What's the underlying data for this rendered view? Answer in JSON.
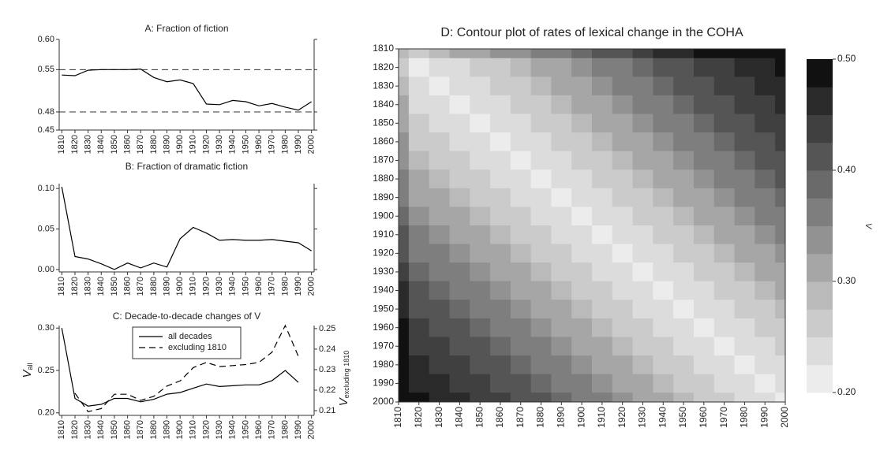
{
  "chart_data": [
    {
      "type": "line",
      "title": "A: Fraction of fiction",
      "x": [
        1810,
        1820,
        1830,
        1840,
        1850,
        1860,
        1870,
        1880,
        1890,
        1900,
        1910,
        1920,
        1930,
        1940,
        1950,
        1960,
        1970,
        1980,
        1990,
        2000
      ],
      "xticks": [
        1810,
        1820,
        1830,
        1840,
        1850,
        1860,
        1870,
        1880,
        1890,
        1900,
        1910,
        1920,
        1930,
        1940,
        1950,
        1960,
        1970,
        1980,
        1990,
        2000
      ],
      "xlim": [
        1808,
        2002
      ],
      "ylim": [
        0.45,
        0.6
      ],
      "yticks": [
        0.45,
        0.48,
        0.55,
        {
          "value": 0.6,
          "label": "0.60"
        }
      ],
      "hlines": [
        0.55,
        0.48
      ],
      "series": [
        {
          "color": "#000000",
          "linestyle": "solid",
          "values": [
            0.541,
            0.54,
            0.549,
            0.55,
            0.55,
            0.55,
            0.551,
            0.537,
            0.53,
            0.533,
            0.527,
            0.493,
            0.492,
            0.499,
            0.497,
            0.49,
            0.494,
            0.488,
            0.483,
            0.497
          ]
        }
      ]
    },
    {
      "type": "line",
      "title": "B: Fraction of dramatic fiction",
      "x": [
        1810,
        1820,
        1830,
        1840,
        1850,
        1860,
        1870,
        1880,
        1890,
        1900,
        1910,
        1920,
        1930,
        1940,
        1950,
        1960,
        1970,
        1980,
        1990,
        2000
      ],
      "xticks": [
        1810,
        1820,
        1830,
        1840,
        1850,
        1860,
        1870,
        1880,
        1890,
        1900,
        1910,
        1920,
        1930,
        1940,
        1950,
        1960,
        1970,
        1980,
        1990,
        2000
      ],
      "xlim": [
        1808,
        2002
      ],
      "ylim": [
        -0.003,
        0.106
      ],
      "yticks": [
        {
          "value": 0,
          "label": "0.00"
        },
        0.05,
        {
          "value": 0.1,
          "label": "0.10"
        }
      ],
      "series": [
        {
          "color": "#000000",
          "linestyle": "solid",
          "values": [
            0.102,
            0.016,
            0.013,
            0.007,
            0.0,
            0.008,
            0.002,
            0.008,
            0.003,
            0.038,
            0.052,
            0.045,
            0.036,
            0.037,
            0.036,
            0.036,
            0.037,
            0.035,
            0.033,
            0.023
          ]
        }
      ]
    },
    {
      "type": "line",
      "title": "C: Decade-to-decade changes of V",
      "x": [
        1810,
        1820,
        1830,
        1840,
        1850,
        1860,
        1870,
        1880,
        1890,
        1900,
        1910,
        1920,
        1930,
        1940,
        1950,
        1960,
        1970,
        1980,
        1990,
        2000
      ],
      "xticks": [
        1810,
        1820,
        1830,
        1840,
        1850,
        1860,
        1870,
        1880,
        1890,
        1900,
        1910,
        1920,
        1930,
        1940,
        1950,
        1960,
        1970,
        1980,
        1990,
        2000
      ],
      "xlim": [
        1808,
        2002
      ],
      "ylim": [
        0.197,
        0.303
      ],
      "yticks": [
        {
          "value": 0.2,
          "label": "0.20"
        },
        0.25,
        {
          "value": 0.3,
          "label": "0.30"
        }
      ],
      "y2lim": [
        0.2077,
        0.2515
      ],
      "y2ticks": [
        0.21,
        0.22,
        0.23,
        0.24,
        0.25
      ],
      "ylabel": "V",
      "ylabel_sub": "all",
      "y2label": "V",
      "y2label_sub": "excluding 1810",
      "legend": "upper center",
      "series": [
        {
          "name": "all decades",
          "color": "#000000",
          "linestyle": "solid",
          "values": [
            0.3,
            0.217,
            0.208,
            0.21,
            0.217,
            0.217,
            0.213,
            0.216,
            0.222,
            0.224,
            0.229,
            0.234,
            0.231,
            0.232,
            0.233,
            0.233,
            0.238,
            0.25,
            0.236,
            null
          ]
        },
        {
          "name": "excluding 1810",
          "color": "#000000",
          "linestyle": "dashed",
          "axis": "y2",
          "values": [
            null,
            0.2185,
            0.2095,
            0.211,
            0.218,
            0.218,
            0.215,
            0.217,
            0.222,
            0.2245,
            0.231,
            0.2335,
            0.2315,
            0.232,
            0.2325,
            0.2335,
            0.2385,
            0.2515,
            0.2365,
            null
          ]
        }
      ]
    },
    {
      "type": "contour",
      "title": "D: Contour plot of rates of lexical change in the COHA",
      "x": [
        1810,
        1820,
        1830,
        1840,
        1850,
        1860,
        1870,
        1880,
        1890,
        1900,
        1910,
        1920,
        1930,
        1940,
        1950,
        1960,
        1970,
        1980,
        1990,
        2000
      ],
      "y": [
        1810,
        1820,
        1830,
        1840,
        1850,
        1860,
        1870,
        1880,
        1890,
        1900,
        1910,
        1920,
        1930,
        1940,
        1950,
        1960,
        1970,
        1980,
        1990,
        2000
      ],
      "xticks": [
        1810,
        1820,
        1830,
        1840,
        1850,
        1860,
        1870,
        1880,
        1890,
        1900,
        1910,
        1920,
        1930,
        1940,
        1950,
        1960,
        1970,
        1980,
        1990,
        2000
      ],
      "yticks": [
        1810,
        1820,
        1830,
        1840,
        1850,
        1860,
        1870,
        1880,
        1890,
        1900,
        1910,
        1920,
        1930,
        1940,
        1950,
        1960,
        1970,
        1980,
        1990,
        2000
      ],
      "xlim": [
        1810,
        2000
      ],
      "ylim": [
        1810,
        2000
      ],
      "y_inverted": true,
      "z": [
        [
          0.28,
          0.27,
          0.28,
          0.3,
          0.31,
          0.33,
          0.34,
          0.36,
          0.37,
          0.39,
          0.41,
          0.42,
          0.44,
          0.45,
          0.47,
          0.48,
          0.5,
          0.5,
          0.5,
          0.5
        ],
        [
          0.27,
          0.21,
          0.23,
          0.24,
          0.26,
          0.27,
          0.29,
          0.3,
          0.32,
          0.33,
          0.35,
          0.37,
          0.38,
          0.4,
          0.41,
          0.43,
          0.44,
          0.46,
          0.47,
          0.49
        ],
        [
          0.28,
          0.23,
          0.21,
          0.23,
          0.24,
          0.26,
          0.27,
          0.29,
          0.3,
          0.32,
          0.33,
          0.35,
          0.37,
          0.38,
          0.4,
          0.41,
          0.43,
          0.44,
          0.46,
          0.47
        ],
        [
          0.3,
          0.24,
          0.23,
          0.21,
          0.23,
          0.24,
          0.26,
          0.27,
          0.29,
          0.3,
          0.32,
          0.33,
          0.35,
          0.37,
          0.38,
          0.4,
          0.41,
          0.43,
          0.44,
          0.46
        ],
        [
          0.31,
          0.26,
          0.24,
          0.23,
          0.21,
          0.23,
          0.24,
          0.26,
          0.27,
          0.29,
          0.3,
          0.32,
          0.33,
          0.35,
          0.37,
          0.38,
          0.4,
          0.41,
          0.43,
          0.44
        ],
        [
          0.33,
          0.27,
          0.26,
          0.24,
          0.23,
          0.21,
          0.23,
          0.24,
          0.26,
          0.27,
          0.29,
          0.3,
          0.32,
          0.33,
          0.35,
          0.37,
          0.38,
          0.4,
          0.41,
          0.43
        ],
        [
          0.34,
          0.29,
          0.27,
          0.26,
          0.24,
          0.23,
          0.21,
          0.23,
          0.24,
          0.26,
          0.27,
          0.29,
          0.3,
          0.32,
          0.33,
          0.35,
          0.37,
          0.38,
          0.4,
          0.41
        ],
        [
          0.36,
          0.3,
          0.29,
          0.27,
          0.26,
          0.24,
          0.23,
          0.21,
          0.23,
          0.24,
          0.26,
          0.27,
          0.29,
          0.3,
          0.32,
          0.33,
          0.35,
          0.37,
          0.38,
          0.4
        ],
        [
          0.37,
          0.32,
          0.3,
          0.29,
          0.27,
          0.26,
          0.24,
          0.23,
          0.21,
          0.23,
          0.24,
          0.26,
          0.27,
          0.29,
          0.3,
          0.32,
          0.33,
          0.35,
          0.37,
          0.38
        ],
        [
          0.39,
          0.33,
          0.32,
          0.3,
          0.29,
          0.27,
          0.26,
          0.24,
          0.23,
          0.21,
          0.23,
          0.24,
          0.26,
          0.27,
          0.29,
          0.3,
          0.32,
          0.33,
          0.35,
          0.37
        ],
        [
          0.41,
          0.35,
          0.33,
          0.32,
          0.3,
          0.29,
          0.27,
          0.26,
          0.24,
          0.23,
          0.21,
          0.23,
          0.24,
          0.26,
          0.27,
          0.29,
          0.3,
          0.32,
          0.33,
          0.35
        ],
        [
          0.42,
          0.37,
          0.35,
          0.33,
          0.32,
          0.3,
          0.29,
          0.27,
          0.26,
          0.24,
          0.23,
          0.21,
          0.23,
          0.24,
          0.26,
          0.27,
          0.29,
          0.3,
          0.32,
          0.33
        ],
        [
          0.44,
          0.38,
          0.37,
          0.35,
          0.33,
          0.32,
          0.3,
          0.29,
          0.27,
          0.26,
          0.24,
          0.23,
          0.21,
          0.23,
          0.24,
          0.26,
          0.27,
          0.29,
          0.3,
          0.32
        ],
        [
          0.45,
          0.4,
          0.38,
          0.37,
          0.35,
          0.33,
          0.32,
          0.3,
          0.29,
          0.27,
          0.26,
          0.24,
          0.23,
          0.21,
          0.23,
          0.24,
          0.26,
          0.27,
          0.29,
          0.3
        ],
        [
          0.47,
          0.41,
          0.4,
          0.38,
          0.37,
          0.35,
          0.33,
          0.32,
          0.3,
          0.29,
          0.27,
          0.26,
          0.24,
          0.23,
          0.21,
          0.23,
          0.24,
          0.26,
          0.27,
          0.29
        ],
        [
          0.48,
          0.43,
          0.41,
          0.4,
          0.38,
          0.37,
          0.35,
          0.33,
          0.32,
          0.3,
          0.29,
          0.27,
          0.26,
          0.24,
          0.23,
          0.21,
          0.23,
          0.24,
          0.26,
          0.27
        ],
        [
          0.5,
          0.44,
          0.43,
          0.41,
          0.4,
          0.38,
          0.37,
          0.35,
          0.33,
          0.32,
          0.3,
          0.29,
          0.27,
          0.26,
          0.24,
          0.23,
          0.21,
          0.23,
          0.24,
          0.26
        ],
        [
          0.5,
          0.46,
          0.44,
          0.43,
          0.41,
          0.4,
          0.38,
          0.37,
          0.35,
          0.33,
          0.32,
          0.3,
          0.29,
          0.27,
          0.26,
          0.24,
          0.23,
          0.21,
          0.23,
          0.24
        ],
        [
          0.5,
          0.47,
          0.46,
          0.44,
          0.43,
          0.41,
          0.4,
          0.38,
          0.37,
          0.35,
          0.33,
          0.32,
          0.3,
          0.29,
          0.27,
          0.26,
          0.24,
          0.23,
          0.21,
          0.23
        ],
        [
          0.5,
          0.49,
          0.47,
          0.46,
          0.44,
          0.43,
          0.41,
          0.4,
          0.38,
          0.37,
          0.35,
          0.33,
          0.32,
          0.3,
          0.29,
          0.27,
          0.26,
          0.24,
          0.23,
          0.21
        ]
      ],
      "levels": [
        0.2,
        0.225,
        0.25,
        0.275,
        0.3,
        0.325,
        0.35,
        0.375,
        0.4,
        0.425,
        0.45,
        0.475,
        0.5
      ],
      "colors": [
        "#ececec",
        "#dcdcdc",
        "#cbcbcb",
        "#bababa",
        "#a6a6a6",
        "#929292",
        "#7e7e7e",
        "#6a6a6a",
        "#555555",
        "#404040",
        "#2a2a2a",
        "#111111"
      ],
      "cticks": [
        {
          "value": 0.2,
          "label": "0.20"
        },
        {
          "value": 0.3,
          "label": "0.30"
        },
        {
          "value": 0.4,
          "label": "0.40"
        },
        {
          "value": 0.5,
          "label": "0.50"
        }
      ],
      "clabel": "V"
    }
  ]
}
